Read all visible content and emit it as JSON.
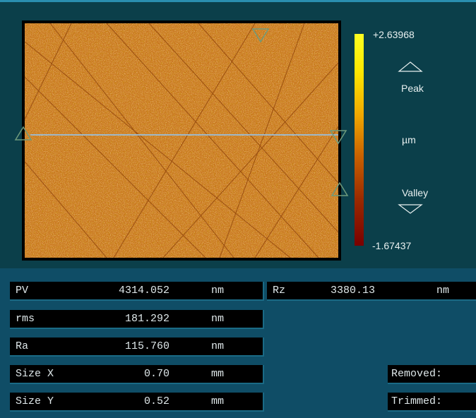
{
  "colorbar": {
    "max_label": "+2.63968",
    "min_label": "-1.67437",
    "peak_label": "Peak",
    "valley_label": "Valley",
    "unit_label": "µm",
    "colors": [
      "#ffff20",
      "#f0a800",
      "#c86000",
      "#7a0000"
    ]
  },
  "stats": {
    "pv": {
      "label": "PV",
      "value": "4314.052",
      "unit": "nm"
    },
    "rms": {
      "label": "rms",
      "value": "181.292",
      "unit": "nm"
    },
    "ra": {
      "label": "Ra",
      "value": "115.760",
      "unit": "nm"
    },
    "size_x": {
      "label": "Size X",
      "value": "0.70",
      "unit": "mm"
    },
    "size_y": {
      "label": "Size Y",
      "value": "0.52",
      "unit": "mm"
    },
    "rz": {
      "label": "Rz",
      "value": "3380.13",
      "unit": "nm"
    }
  },
  "status": {
    "removed_label": "Removed:",
    "trimmed_label": "Trimmed:"
  },
  "theme": {
    "background": "#0f4d66",
    "panel": "#0b3f4a",
    "surface_base": "#c9771e",
    "profile_line": "#9fb8c8"
  },
  "icons": [
    "profile-start-marker-icon",
    "profile-end-marker-icon",
    "top-marker-icon",
    "side-marker-icon",
    "peak-triangle-icon",
    "valley-triangle-icon"
  ]
}
